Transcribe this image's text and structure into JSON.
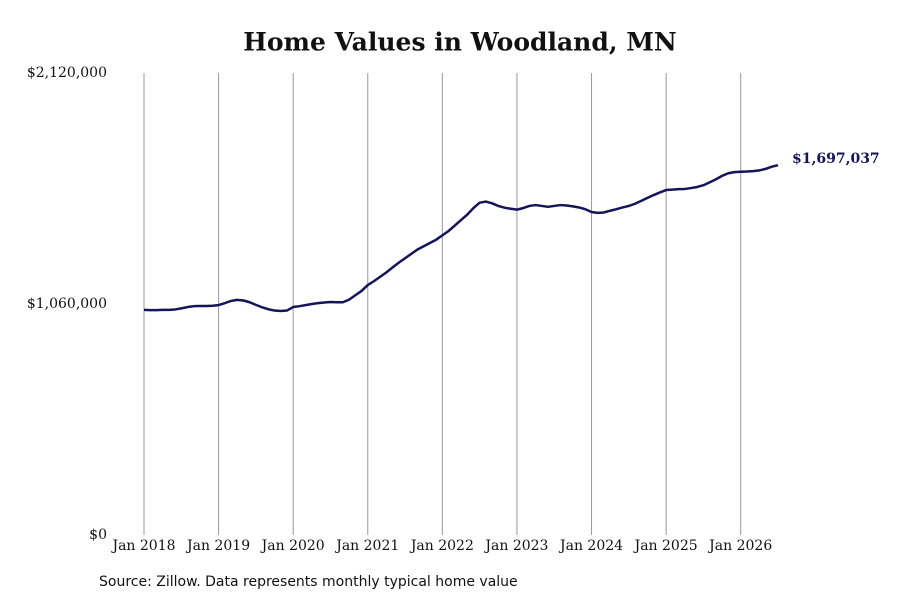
{
  "chart_data": {
    "type": "line",
    "title": "Home Values in Woodland, MN",
    "source": "Source: Zillow. Data represents monthly typical home value",
    "x": [
      "2018-01",
      "2018-02",
      "2018-03",
      "2018-04",
      "2018-05",
      "2018-06",
      "2018-07",
      "2018-08",
      "2018-09",
      "2018-10",
      "2018-11",
      "2018-12",
      "2019-01",
      "2019-02",
      "2019-03",
      "2019-04",
      "2019-05",
      "2019-06",
      "2019-07",
      "2019-08",
      "2019-09",
      "2019-10",
      "2019-11",
      "2019-12",
      "2020-01",
      "2020-02",
      "2020-03",
      "2020-04",
      "2020-05",
      "2020-06",
      "2020-07",
      "2020-08",
      "2020-09",
      "2020-10",
      "2020-11",
      "2020-12",
      "2021-01",
      "2021-02",
      "2021-03",
      "2021-04",
      "2021-05",
      "2021-06",
      "2021-07",
      "2021-08",
      "2021-09",
      "2021-10",
      "2021-11",
      "2021-12",
      "2022-01",
      "2022-02",
      "2022-03",
      "2022-04",
      "2022-05",
      "2022-06",
      "2022-07",
      "2022-08",
      "2022-09",
      "2022-10",
      "2022-11",
      "2022-12",
      "2023-01",
      "2023-02",
      "2023-03",
      "2023-04",
      "2023-05",
      "2023-06",
      "2023-07",
      "2023-08",
      "2023-09",
      "2023-10",
      "2023-11",
      "2023-12",
      "2024-01",
      "2024-02",
      "2024-03",
      "2024-04",
      "2024-05",
      "2024-06",
      "2024-07",
      "2024-08",
      "2024-09",
      "2024-10",
      "2024-11",
      "2024-12",
      "2025-01",
      "2025-02",
      "2025-03",
      "2025-04",
      "2025-05",
      "2025-06",
      "2025-07",
      "2025-08",
      "2025-09",
      "2025-10",
      "2025-11",
      "2025-12",
      "2026-01",
      "2026-02",
      "2026-03",
      "2026-04",
      "2026-05",
      "2026-06",
      "2026-07"
    ],
    "series": [
      {
        "name": "Woodland, MN",
        "color": "#141459",
        "values": [
          1033000,
          1032000,
          1032000,
          1033000,
          1033000,
          1035000,
          1040000,
          1046000,
          1050000,
          1051000,
          1051000,
          1052000,
          1055000,
          1064000,
          1074000,
          1079000,
          1076000,
          1068000,
          1056000,
          1045000,
          1036000,
          1030000,
          1028000,
          1030000,
          1046000,
          1050000,
          1055000,
          1060000,
          1064000,
          1067000,
          1069000,
          1068000,
          1068000,
          1080000,
          1100000,
          1120000,
          1147000,
          1165000,
          1185000,
          1205000,
          1228000,
          1250000,
          1270000,
          1290000,
          1310000,
          1325000,
          1340000,
          1355000,
          1375000,
          1395000,
          1420000,
          1445000,
          1470000,
          1500000,
          1525000,
          1530000,
          1522000,
          1510000,
          1502000,
          1497000,
          1493000,
          1500000,
          1510000,
          1514000,
          1510000,
          1506000,
          1510000,
          1514000,
          1512000,
          1508000,
          1503000,
          1495000,
          1482000,
          1478000,
          1480000,
          1488000,
          1495000,
          1503000,
          1510000,
          1520000,
          1533000,
          1547000,
          1560000,
          1572000,
          1583000,
          1585000,
          1587000,
          1588000,
          1592000,
          1597000,
          1605000,
          1618000,
          1632000,
          1648000,
          1660000,
          1665000,
          1667000,
          1668000,
          1670000,
          1673000,
          1680000,
          1690000,
          1697037
        ],
        "end_label": "$1,697,037"
      }
    ],
    "xlim": [
      "2018-01",
      "2026-07"
    ],
    "xticks": [
      {
        "value": "2018-01",
        "label": "Jan 2018"
      },
      {
        "value": "2019-01",
        "label": "Jan 2019"
      },
      {
        "value": "2020-01",
        "label": "Jan 2020"
      },
      {
        "value": "2021-01",
        "label": "Jan 2021"
      },
      {
        "value": "2022-01",
        "label": "Jan 2022"
      },
      {
        "value": "2023-01",
        "label": "Jan 2023"
      },
      {
        "value": "2024-01",
        "label": "Jan 2024"
      },
      {
        "value": "2025-01",
        "label": "Jan 2025"
      },
      {
        "value": "2026-01",
        "label": "Jan 2026"
      }
    ],
    "ylim": [
      0,
      2120000
    ],
    "yticks": [
      {
        "value": 0,
        "label": "$0"
      },
      {
        "value": 1060000,
        "label": "$1,060,000"
      },
      {
        "value": 2120000,
        "label": "$2,120,000"
      }
    ],
    "grid": "x"
  }
}
